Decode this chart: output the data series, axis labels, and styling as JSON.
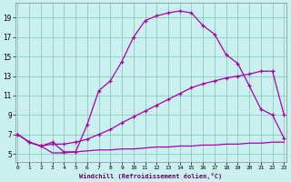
{
  "xlabel": "Windchill (Refroidissement éolien,°C)",
  "bg_color": "#caf0f0",
  "grid_color": "#88ccbb",
  "line_color": "#aa00aa",
  "x_ticks": [
    0,
    1,
    2,
    3,
    4,
    5,
    6,
    7,
    8,
    9,
    10,
    11,
    12,
    13,
    14,
    15,
    16,
    17,
    18,
    19,
    20,
    21,
    22,
    23
  ],
  "y_ticks": [
    5,
    7,
    9,
    11,
    13,
    15,
    17,
    19
  ],
  "xlim": [
    -0.2,
    23.2
  ],
  "ylim": [
    4.2,
    20.5
  ],
  "curve1_x": [
    0,
    1,
    2,
    3,
    4,
    5,
    6,
    7,
    8,
    9,
    10,
    11,
    12,
    13,
    14,
    15,
    16,
    17,
    18,
    19,
    20,
    21,
    22,
    23
  ],
  "curve1_y": [
    7.0,
    6.2,
    5.8,
    5.1,
    5.1,
    5.2,
    5.3,
    5.4,
    5.4,
    5.5,
    5.5,
    5.6,
    5.7,
    5.7,
    5.8,
    5.8,
    5.9,
    5.9,
    6.0,
    6.0,
    6.1,
    6.1,
    6.2,
    6.2
  ],
  "curve2_x": [
    0,
    1,
    2,
    3,
    4,
    5,
    6,
    7,
    8,
    9,
    10,
    11,
    12,
    13,
    14,
    15,
    16,
    17,
    18,
    19,
    20,
    21,
    22,
    23
  ],
  "curve2_y": [
    7.0,
    6.2,
    5.8,
    6.0,
    6.0,
    6.2,
    6.5,
    7.0,
    7.5,
    8.2,
    8.8,
    9.4,
    10.0,
    10.6,
    11.2,
    11.8,
    12.2,
    12.5,
    12.8,
    13.0,
    13.2,
    13.5,
    13.5,
    9.0
  ],
  "curve3_x": [
    0,
    1,
    2,
    3,
    4,
    5,
    6,
    7,
    8,
    9,
    10,
    11,
    12,
    13,
    14,
    15,
    16,
    17,
    18,
    19,
    20,
    21,
    22,
    23
  ],
  "curve3_y": [
    7.0,
    6.2,
    5.8,
    6.2,
    5.2,
    5.2,
    8.0,
    11.5,
    12.5,
    14.5,
    17.0,
    18.7,
    19.2,
    19.5,
    19.7,
    19.5,
    18.2,
    17.3,
    15.2,
    14.3,
    12.0,
    9.6,
    9.0,
    6.6
  ]
}
